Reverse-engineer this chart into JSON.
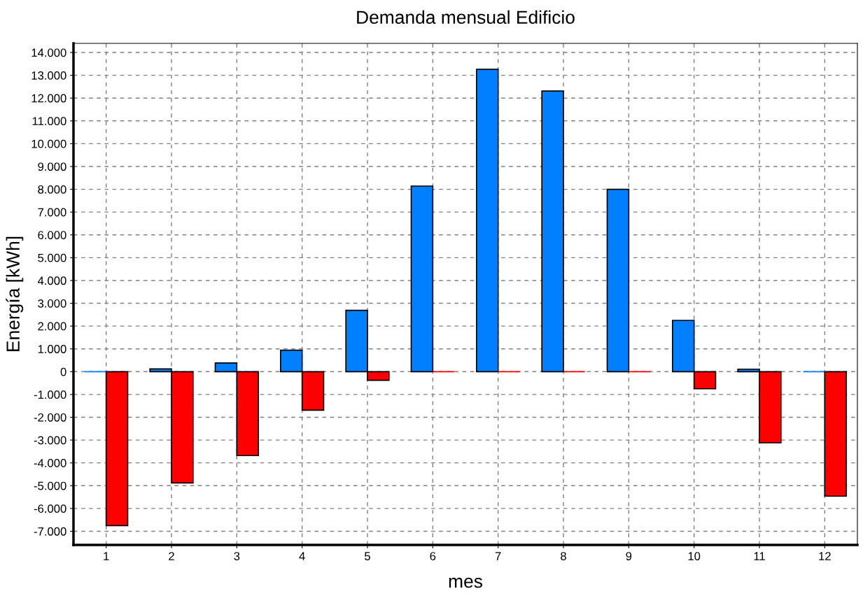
{
  "chart_data": {
    "type": "bar",
    "title": "Demanda mensual Edificio",
    "xlabel": "mes",
    "ylabel": "Energía [kWh]",
    "categories": [
      "1",
      "2",
      "3",
      "4",
      "5",
      "6",
      "7",
      "8",
      "9",
      "10",
      "11",
      "12"
    ],
    "series": [
      {
        "color": "#0080ff",
        "values": [
          0,
          120,
          380,
          940,
          2690,
          8140,
          13260,
          12310,
          8000,
          2250,
          110,
          0
        ]
      },
      {
        "color": "#ff0000",
        "values": [
          -6750,
          -4880,
          -3680,
          -1690,
          -380,
          0,
          0,
          0,
          0,
          -750,
          -3120,
          -5460
        ]
      }
    ],
    "ylim": [
      -7600,
      14400
    ],
    "yticks": [
      {
        "value": -7000,
        "label": "-7.000"
      },
      {
        "value": -6000,
        "label": "-6.000"
      },
      {
        "value": -5000,
        "label": "-5.000"
      },
      {
        "value": -4000,
        "label": "-4.000"
      },
      {
        "value": -3000,
        "label": "-3.000"
      },
      {
        "value": -2000,
        "label": "-2.000"
      },
      {
        "value": -1000,
        "label": "-1.000"
      },
      0,
      {
        "value": 1000,
        "label": "1.000"
      },
      {
        "value": 2000,
        "label": "2.000"
      },
      {
        "value": 3000,
        "label": "3.000"
      },
      {
        "value": 4000,
        "label": "4.000"
      },
      {
        "value": 5000,
        "label": "5.000"
      },
      {
        "value": 6000,
        "label": "6.000"
      },
      {
        "value": 7000,
        "label": "7.000"
      },
      {
        "value": 8000,
        "label": "8.000"
      },
      {
        "value": 9000,
        "label": "9.000"
      },
      {
        "value": 10000,
        "label": "10.000"
      },
      {
        "value": 11000,
        "label": "11.000"
      },
      {
        "value": 12000,
        "label": "12.000"
      },
      {
        "value": 13000,
        "label": "13.000"
      },
      {
        "value": 14000,
        "label": "14.000"
      }
    ],
    "grid": true,
    "legend": false
  }
}
